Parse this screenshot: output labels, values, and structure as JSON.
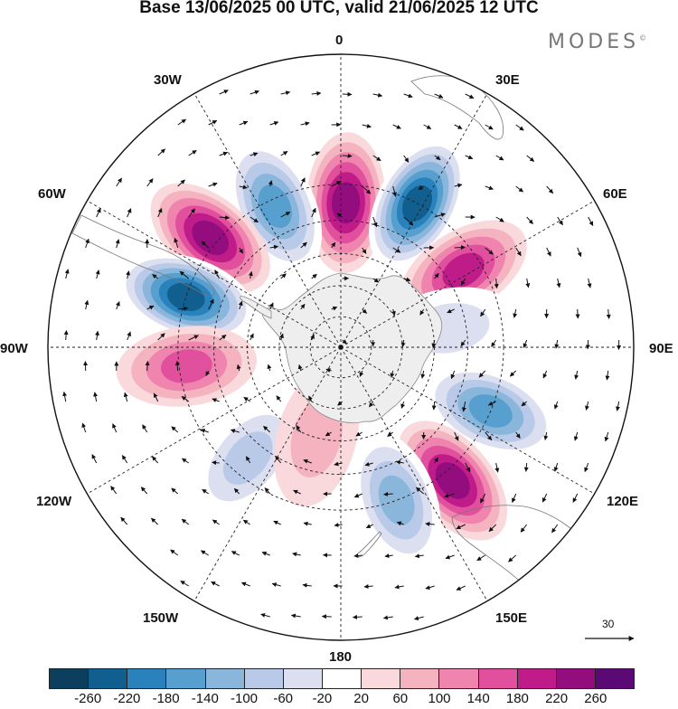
{
  "title": "Base 13/06/2025 00 UTC, valid 21/06/2025 12 UTC",
  "brand": "MODES",
  "brand_mark": "©",
  "longitude_labels": {
    "n0": "0",
    "e30": "30E",
    "e60": "60E",
    "e90": "90E",
    "e120": "120E",
    "e150": "150E",
    "s180": "180",
    "w150": "150W",
    "w120": "120W",
    "w90": "90W",
    "w60": "60W",
    "w30": "30W"
  },
  "vector_reference": "30",
  "colorbar": {
    "colors": [
      "#0c3f5e",
      "#105f8f",
      "#2a82bd",
      "#579fcf",
      "#8bb6dc",
      "#b8cae7",
      "#dcdff0",
      "#ffffff",
      "#f9d9dc",
      "#f5b3c0",
      "#ef85ae",
      "#e0509d",
      "#c01c89",
      "#930d7f",
      "#5b0a75"
    ],
    "ticks": [
      "-260",
      "-220",
      "-180",
      "-140",
      "-100",
      "-60",
      "-20",
      "20",
      "60",
      "100",
      "140",
      "180",
      "220",
      "260"
    ]
  },
  "map_data": {
    "projection": "south-polar-stereographic",
    "anomaly_centers": [
      {
        "lon": 2,
        "lat": -45,
        "value": 200
      },
      {
        "lon": 28,
        "lat": -40,
        "value": -240
      },
      {
        "lon": 58,
        "lat": -45,
        "value": 180
      },
      {
        "lon": -25,
        "lat": -42,
        "value": -180
      },
      {
        "lon": -50,
        "lat": -38,
        "value": 210
      },
      {
        "lon": -72,
        "lat": -40,
        "value": -260
      },
      {
        "lon": -97,
        "lat": -42,
        "value": 150
      },
      {
        "lon": 113,
        "lat": -40,
        "value": -180
      },
      {
        "lon": 140,
        "lat": -37,
        "value": 200
      },
      {
        "lon": 160,
        "lat": -40,
        "value": -120
      },
      {
        "lon": -140,
        "lat": -45,
        "value": -110
      },
      {
        "lon": 80,
        "lat": -55,
        "value": -50
      },
      {
        "lon": -165,
        "lat": -60,
        "value": 70
      }
    ]
  }
}
